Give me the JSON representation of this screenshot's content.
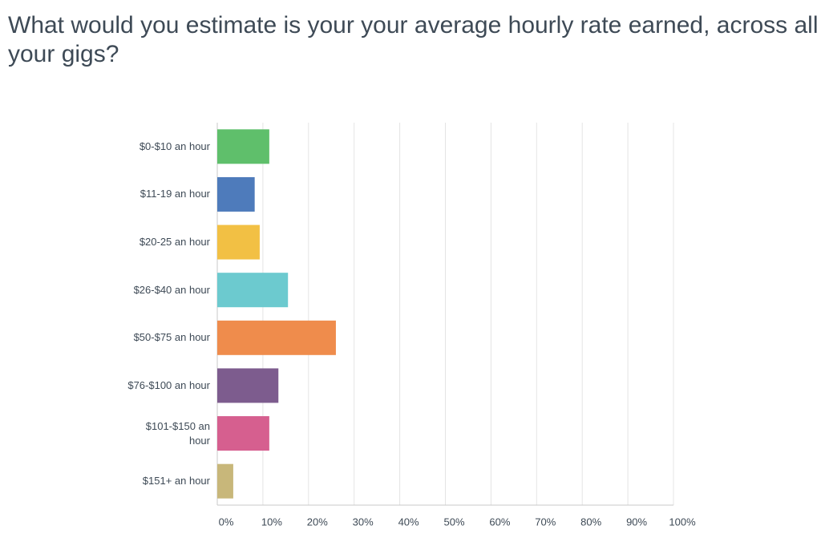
{
  "chart_data": {
    "type": "bar",
    "orientation": "horizontal",
    "title": "What would you estimate is your your average hourly rate earned, across all your gigs?",
    "categories": [
      "$0-$10 an hour",
      "$11-19 an hour",
      "$20-25 an hour",
      "$26-$40 an hour",
      "$50-$75 an hour",
      "$76-$100 an hour",
      "$101-$150 an hour",
      "$151+ an hour"
    ],
    "values": [
      11.4,
      8.2,
      9.3,
      15.5,
      26,
      13.4,
      11.4,
      3.5
    ],
    "colors": [
      "#5fbf6b",
      "#4e7bbb",
      "#f2c044",
      "#6ccacf",
      "#ef8c4c",
      "#7d5c8e",
      "#d65f8f",
      "#c8b77a"
    ],
    "xlim": [
      0,
      100
    ],
    "xticks": [
      {
        "value": 0,
        "label": "0%"
      },
      {
        "value": 10,
        "label": "10%"
      },
      {
        "value": 20,
        "label": "20%"
      },
      {
        "value": 30,
        "label": "30%"
      },
      {
        "value": 40,
        "label": "40%"
      },
      {
        "value": 50,
        "label": "50%"
      },
      {
        "value": 60,
        "label": "60%"
      },
      {
        "value": 70,
        "label": "70%"
      },
      {
        "value": 80,
        "label": "80%"
      },
      {
        "value": 90,
        "label": "90%"
      },
      {
        "value": 100,
        "label": "100%"
      }
    ],
    "grid": true
  }
}
